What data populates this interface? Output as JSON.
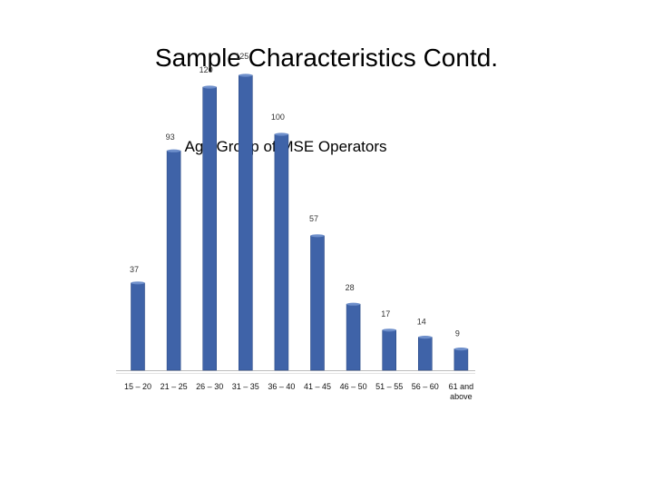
{
  "slide": {
    "title": "Sample Characteristics Contd."
  },
  "chart_data": {
    "type": "bar",
    "title": "Age Group of MSE Operators",
    "xlabel": "",
    "ylabel": "",
    "categories": [
      "15 – 20",
      "21 – 25",
      "26 – 30",
      "31 – 35",
      "36 – 40",
      "41 – 45",
      "46 – 50",
      "51 – 55",
      "56 – 60",
      "61 and above"
    ],
    "values": [
      37,
      93,
      120,
      125,
      100,
      57,
      28,
      17,
      14,
      9
    ],
    "ylim": [
      0,
      130
    ],
    "grid": false,
    "legend": "none",
    "colors": {
      "bar": "#3F63A8",
      "bar_top": "#6E8FCB",
      "bar_shadow": "#2C4A85",
      "axis": "#bdbdbd"
    }
  }
}
